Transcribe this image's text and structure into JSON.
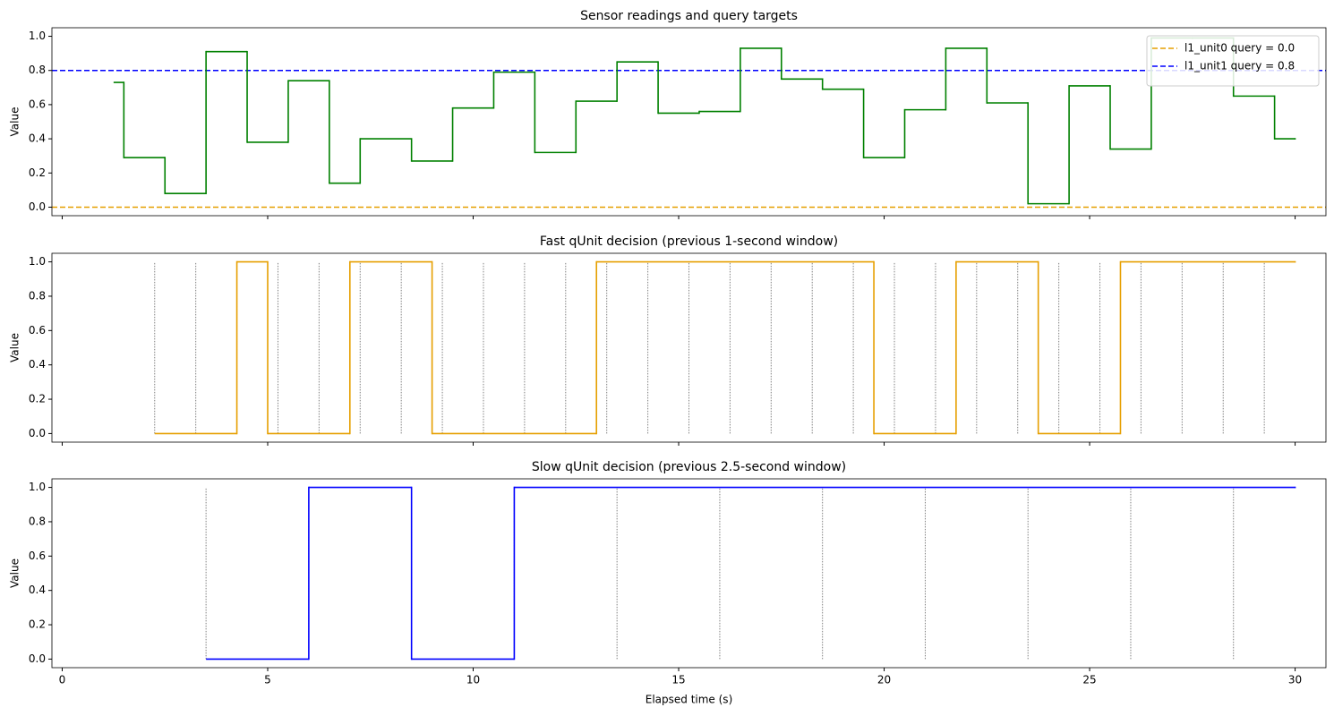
{
  "chart_data": [
    {
      "type": "step",
      "title": "Sensor readings and query targets",
      "ylabel": "Value",
      "xlim": [
        -0.25,
        30.75
      ],
      "xticks": [
        0,
        5,
        10,
        15,
        20,
        25,
        30
      ],
      "ylim": [
        -0.05,
        1.05
      ],
      "yticks": [
        {
          "value": 0,
          "label": "0.0"
        },
        0.2,
        0.4,
        0.6,
        0.8,
        {
          "value": 1,
          "label": "1.0"
        }
      ],
      "x": [
        1.25,
        1.5,
        2.5,
        3.5,
        4.5,
        5.5,
        6.5,
        7.25,
        8.5,
        9.5,
        10.5,
        11.5,
        12.5,
        13.5,
        14.5,
        15.5,
        16.5,
        17.5,
        18.5,
        19.5,
        20.5,
        21.5,
        22.5,
        23.5,
        24.5,
        25.5,
        26.5,
        27.5,
        28.5,
        29.5,
        30
      ],
      "values": [
        0.73,
        0.29,
        0.08,
        0.91,
        0.38,
        0.74,
        0.14,
        0.4,
        0.27,
        0.58,
        0.79,
        0.32,
        0.62,
        0.85,
        0.55,
        0.56,
        0.93,
        0.75,
        0.69,
        0.29,
        0.57,
        0.93,
        0.61,
        0.02,
        0.71,
        0.34,
        0.99,
        0.99,
        0.65,
        0.4,
        0.4
      ],
      "color": "#008000",
      "hlines": [
        {
          "name": "l1_unit0 query = 0.0",
          "value": 0,
          "color": "#e69f00"
        },
        {
          "name": "l1_unit1 query = 0.8",
          "value": 0.8,
          "color": "#0000ff"
        }
      ],
      "legend": "upper right"
    },
    {
      "type": "step",
      "title": "Fast qUnit decision (previous 1-second window)",
      "ylabel": "Value",
      "xlim": [
        -0.25,
        30.75
      ],
      "xticks": [
        0,
        5,
        10,
        15,
        20,
        25,
        30
      ],
      "ylim": [
        -0.05,
        1.05
      ],
      "yticks": [
        {
          "value": 0,
          "label": "0.0"
        },
        0.2,
        0.4,
        0.6,
        0.8,
        {
          "value": 1,
          "label": "1.0"
        }
      ],
      "x": [
        2.25,
        4.25,
        5,
        7,
        9,
        13,
        19.75,
        21.75,
        23.75,
        25.75,
        30
      ],
      "values": [
        0,
        1,
        0,
        1,
        0,
        1,
        0,
        1,
        0,
        1,
        1
      ],
      "color": "#e69f00",
      "vlines": [
        2.25,
        3.25,
        4.25,
        5.25,
        6.25,
        7.25,
        8.25,
        9.25,
        10.25,
        11.25,
        12.25,
        13.25,
        14.25,
        15.25,
        16.25,
        17.25,
        18.25,
        19.25,
        20.25,
        21.25,
        22.25,
        23.25,
        24.25,
        25.25,
        26.25,
        27.25,
        28.25,
        29.25
      ]
    },
    {
      "type": "step",
      "title": "Slow qUnit decision (previous 2.5-second window)",
      "ylabel": "Value",
      "xlabel": "Elapsed time (s)",
      "xlim": [
        -0.25,
        30.75
      ],
      "xticks": [
        0,
        5,
        10,
        15,
        20,
        25,
        30
      ],
      "ylim": [
        -0.05,
        1.05
      ],
      "yticks": [
        {
          "value": 0,
          "label": "0.0"
        },
        0.2,
        0.4,
        0.6,
        0.8,
        {
          "value": 1,
          "label": "1.0"
        }
      ],
      "x": [
        3.5,
        6,
        8.5,
        11,
        30
      ],
      "values": [
        0,
        1,
        0,
        1,
        1
      ],
      "color": "#0000ff",
      "vlines": [
        3.5,
        6,
        8.5,
        11,
        13.5,
        16,
        18.5,
        21,
        23.5,
        26,
        28.5
      ]
    }
  ]
}
